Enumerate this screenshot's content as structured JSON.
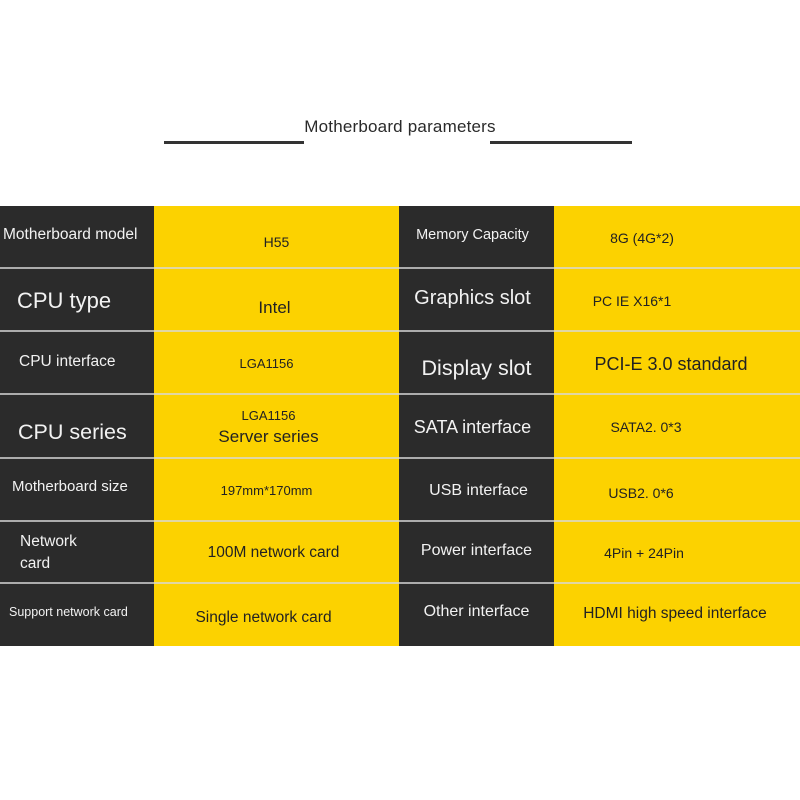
{
  "title": "Motherboard parameters",
  "colors": {
    "dark": "#2b2b2b",
    "yellow": "#fcd200"
  },
  "rows": [
    {
      "label": "Motherboard model",
      "value": "H55",
      "label2": "Memory Capacity",
      "value2": "8G (4G*2)"
    },
    {
      "label": "CPU type",
      "value": "Intel",
      "label2": "Graphics slot",
      "value2": "PC IE X16*1"
    },
    {
      "label": "CPU interface",
      "value": "LGA1156",
      "label2": "Display slot",
      "value2": "PCI-E 3.0 standard"
    },
    {
      "label": "CPU series",
      "value": "LGA1156",
      "value_line2": "Server series",
      "label2": "SATA interface",
      "value2": "SATA2. 0*3"
    },
    {
      "label": "Motherboard size",
      "value": "197mm*170mm",
      "label2": "USB interface",
      "value2": "USB2. 0*6"
    },
    {
      "label": "Network\ncard",
      "value": "100M network card",
      "label2": "Power interface",
      "value2": "4Pin + 24Pin"
    },
    {
      "label": "Support network card",
      "value": "Single network card",
      "label2": "Other interface",
      "value2": "HDMI high speed interface"
    }
  ]
}
